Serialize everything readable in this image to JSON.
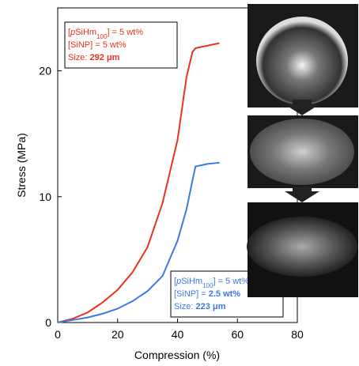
{
  "chart_data": {
    "type": "line",
    "x_label": "Compression (%)",
    "y_label": "Stress (MPa)",
    "x": [
      0,
      5,
      10,
      15,
      20,
      25,
      30,
      35,
      40,
      43,
      45,
      46,
      50,
      54
    ],
    "series": [
      {
        "color": "#e8321e",
        "values": [
          0,
          0.3,
          0.8,
          1.6,
          2.6,
          4,
          6,
          9.5,
          14.5,
          19.5,
          21.5,
          21.8,
          22,
          22.2
        ]
      },
      {
        "color": "#3c78e6",
        "values": [
          0,
          0.2,
          0.4,
          0.7,
          1.1,
          1.7,
          2.5,
          3.7,
          6.5,
          9,
          11.3,
          12.4,
          12.6,
          12.7
        ]
      }
    ],
    "xlim": [
      0,
      80
    ],
    "xticks": [
      0,
      20,
      40,
      60,
      80
    ],
    "ylim": [
      0,
      25
    ],
    "yticks": [
      0,
      10,
      20
    ],
    "annotations": [
      {
        "color": "#e8321e",
        "lines": [
          [
            {
              "text": "["
            },
            {
              "text": "p",
              "italic": true
            },
            {
              "text": "SiHm"
            },
            {
              "text": "100",
              "sub": true
            },
            {
              "text": "] = 5 wt%"
            }
          ],
          [
            {
              "text": "[SiNP] = 5 wt%"
            }
          ],
          [
            {
              "text": "Size: "
            },
            {
              "text": "292 μm",
              "bold": true
            }
          ]
        ]
      },
      {
        "color": "#3c78e6",
        "lines": [
          [
            {
              "text": "["
            },
            {
              "text": "p",
              "italic": true
            },
            {
              "text": "SiHm"
            },
            {
              "text": "100",
              "sub": true
            },
            {
              "text": "] = 5 wt%"
            }
          ],
          [
            {
              "text": "[SiNP] = "
            },
            {
              "text": "2.5 wt%",
              "bold": true
            }
          ],
          [
            {
              "text": "Size: "
            },
            {
              "text": "223 μm",
              "bold": true
            }
          ]
        ]
      }
    ]
  }
}
